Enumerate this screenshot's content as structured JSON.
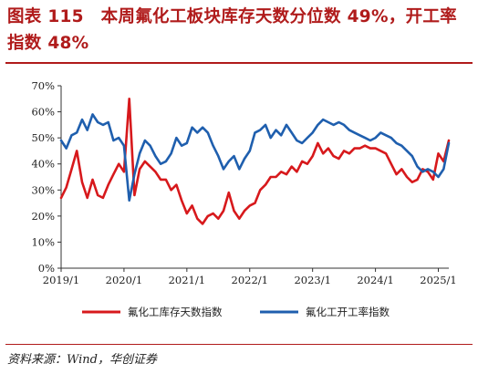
{
  "title": "图表 115　本周氟化工板块库存天数分位数 49%，开工率指数 48%",
  "source": "资料来源：Wind，华创证券",
  "chart_data": {
    "type": "line",
    "title": "图表 115　本周氟化工板块库存天数分位数 49%，开工率指数 48%",
    "xlabel": "",
    "ylabel": "",
    "ylim": [
      0,
      70
    ],
    "yticks": [
      "0%",
      "10%",
      "20%",
      "30%",
      "40%",
      "50%",
      "60%",
      "70%"
    ],
    "xlim": [
      "2019-01",
      "2025-03"
    ],
    "xticks": [
      "2019/1",
      "2020/1",
      "2021/1",
      "2022/1",
      "2023/1",
      "2024/1",
      "2025/1"
    ],
    "grid": false,
    "legend_position": "bottom",
    "series": [
      {
        "name": "氟化工库存天数指数",
        "color": "#d7191c",
        "points": [
          [
            "2019-01",
            27
          ],
          [
            "2019-02",
            31
          ],
          [
            "2019-03",
            38
          ],
          [
            "2019-04",
            45
          ],
          [
            "2019-05",
            33
          ],
          [
            "2019-06",
            27
          ],
          [
            "2019-07",
            34
          ],
          [
            "2019-08",
            28
          ],
          [
            "2019-09",
            27
          ],
          [
            "2019-10",
            32
          ],
          [
            "2019-11",
            36
          ],
          [
            "2019-12",
            40
          ],
          [
            "2020-01",
            37
          ],
          [
            "2020-02",
            65
          ],
          [
            "2020-03",
            28
          ],
          [
            "2020-04",
            38
          ],
          [
            "2020-05",
            41
          ],
          [
            "2020-06",
            39
          ],
          [
            "2020-07",
            37
          ],
          [
            "2020-08",
            34
          ],
          [
            "2020-09",
            34
          ],
          [
            "2020-10",
            30
          ],
          [
            "2020-11",
            32
          ],
          [
            "2020-12",
            26
          ],
          [
            "2021-01",
            21
          ],
          [
            "2021-02",
            24
          ],
          [
            "2021-03",
            19
          ],
          [
            "2021-04",
            17
          ],
          [
            "2021-05",
            20
          ],
          [
            "2021-06",
            21
          ],
          [
            "2021-07",
            19
          ],
          [
            "2021-08",
            22
          ],
          [
            "2021-09",
            29
          ],
          [
            "2021-10",
            22
          ],
          [
            "2021-11",
            19
          ],
          [
            "2021-12",
            22
          ],
          [
            "2022-01",
            24
          ],
          [
            "2022-02",
            25
          ],
          [
            "2022-03",
            30
          ],
          [
            "2022-04",
            32
          ],
          [
            "2022-05",
            35
          ],
          [
            "2022-06",
            35
          ],
          [
            "2022-07",
            37
          ],
          [
            "2022-08",
            36
          ],
          [
            "2022-09",
            39
          ],
          [
            "2022-10",
            37
          ],
          [
            "2022-11",
            41
          ],
          [
            "2022-12",
            40
          ],
          [
            "2023-01",
            43
          ],
          [
            "2023-02",
            48
          ],
          [
            "2023-03",
            44
          ],
          [
            "2023-04",
            46
          ],
          [
            "2023-05",
            43
          ],
          [
            "2023-06",
            42
          ],
          [
            "2023-07",
            45
          ],
          [
            "2023-08",
            44
          ],
          [
            "2023-09",
            46
          ],
          [
            "2023-10",
            46
          ],
          [
            "2023-11",
            47
          ],
          [
            "2023-12",
            46
          ],
          [
            "2024-01",
            46
          ],
          [
            "2024-02",
            45
          ],
          [
            "2024-03",
            44
          ],
          [
            "2024-04",
            40
          ],
          [
            "2024-05",
            36
          ],
          [
            "2024-06",
            38
          ],
          [
            "2024-07",
            35
          ],
          [
            "2024-08",
            33
          ],
          [
            "2024-09",
            34
          ],
          [
            "2024-10",
            38
          ],
          [
            "2024-11",
            37
          ],
          [
            "2024-12",
            34
          ],
          [
            "2025-01",
            44
          ],
          [
            "2025-02",
            41
          ],
          [
            "2025-03",
            49
          ]
        ]
      },
      {
        "name": "氟化工开工率指数",
        "color": "#1f5fae",
        "points": [
          [
            "2019-01",
            49
          ],
          [
            "2019-02",
            46
          ],
          [
            "2019-03",
            51
          ],
          [
            "2019-04",
            52
          ],
          [
            "2019-05",
            57
          ],
          [
            "2019-06",
            53
          ],
          [
            "2019-07",
            59
          ],
          [
            "2019-08",
            56
          ],
          [
            "2019-09",
            55
          ],
          [
            "2019-10",
            56
          ],
          [
            "2019-11",
            49
          ],
          [
            "2019-12",
            50
          ],
          [
            "2020-01",
            47
          ],
          [
            "2020-02",
            26
          ],
          [
            "2020-03",
            36
          ],
          [
            "2020-04",
            44
          ],
          [
            "2020-05",
            49
          ],
          [
            "2020-06",
            47
          ],
          [
            "2020-07",
            43
          ],
          [
            "2020-08",
            40
          ],
          [
            "2020-09",
            41
          ],
          [
            "2020-10",
            44
          ],
          [
            "2020-11",
            50
          ],
          [
            "2020-12",
            47
          ],
          [
            "2021-01",
            48
          ],
          [
            "2021-02",
            54
          ],
          [
            "2021-03",
            52
          ],
          [
            "2021-04",
            54
          ],
          [
            "2021-05",
            52
          ],
          [
            "2021-06",
            47
          ],
          [
            "2021-07",
            43
          ],
          [
            "2021-08",
            38
          ],
          [
            "2021-09",
            41
          ],
          [
            "2021-10",
            43
          ],
          [
            "2021-11",
            38
          ],
          [
            "2021-12",
            42
          ],
          [
            "2022-01",
            45
          ],
          [
            "2022-02",
            52
          ],
          [
            "2022-03",
            53
          ],
          [
            "2022-04",
            55
          ],
          [
            "2022-05",
            50
          ],
          [
            "2022-06",
            53
          ],
          [
            "2022-07",
            51
          ],
          [
            "2022-08",
            55
          ],
          [
            "2022-09",
            52
          ],
          [
            "2022-10",
            49
          ],
          [
            "2022-11",
            48
          ],
          [
            "2022-12",
            50
          ],
          [
            "2023-01",
            52
          ],
          [
            "2023-02",
            55
          ],
          [
            "2023-03",
            57
          ],
          [
            "2023-04",
            56
          ],
          [
            "2023-05",
            55
          ],
          [
            "2023-06",
            56
          ],
          [
            "2023-07",
            55
          ],
          [
            "2023-08",
            53
          ],
          [
            "2023-09",
            52
          ],
          [
            "2023-10",
            51
          ],
          [
            "2023-11",
            50
          ],
          [
            "2023-12",
            49
          ],
          [
            "2024-01",
            50
          ],
          [
            "2024-02",
            52
          ],
          [
            "2024-03",
            51
          ],
          [
            "2024-04",
            50
          ],
          [
            "2024-05",
            48
          ],
          [
            "2024-06",
            47
          ],
          [
            "2024-07",
            45
          ],
          [
            "2024-08",
            43
          ],
          [
            "2024-09",
            39
          ],
          [
            "2024-10",
            37
          ],
          [
            "2024-11",
            38
          ],
          [
            "2024-12",
            37
          ],
          [
            "2025-01",
            35
          ],
          [
            "2025-02",
            38
          ],
          [
            "2025-03",
            48
          ]
        ]
      }
    ]
  }
}
